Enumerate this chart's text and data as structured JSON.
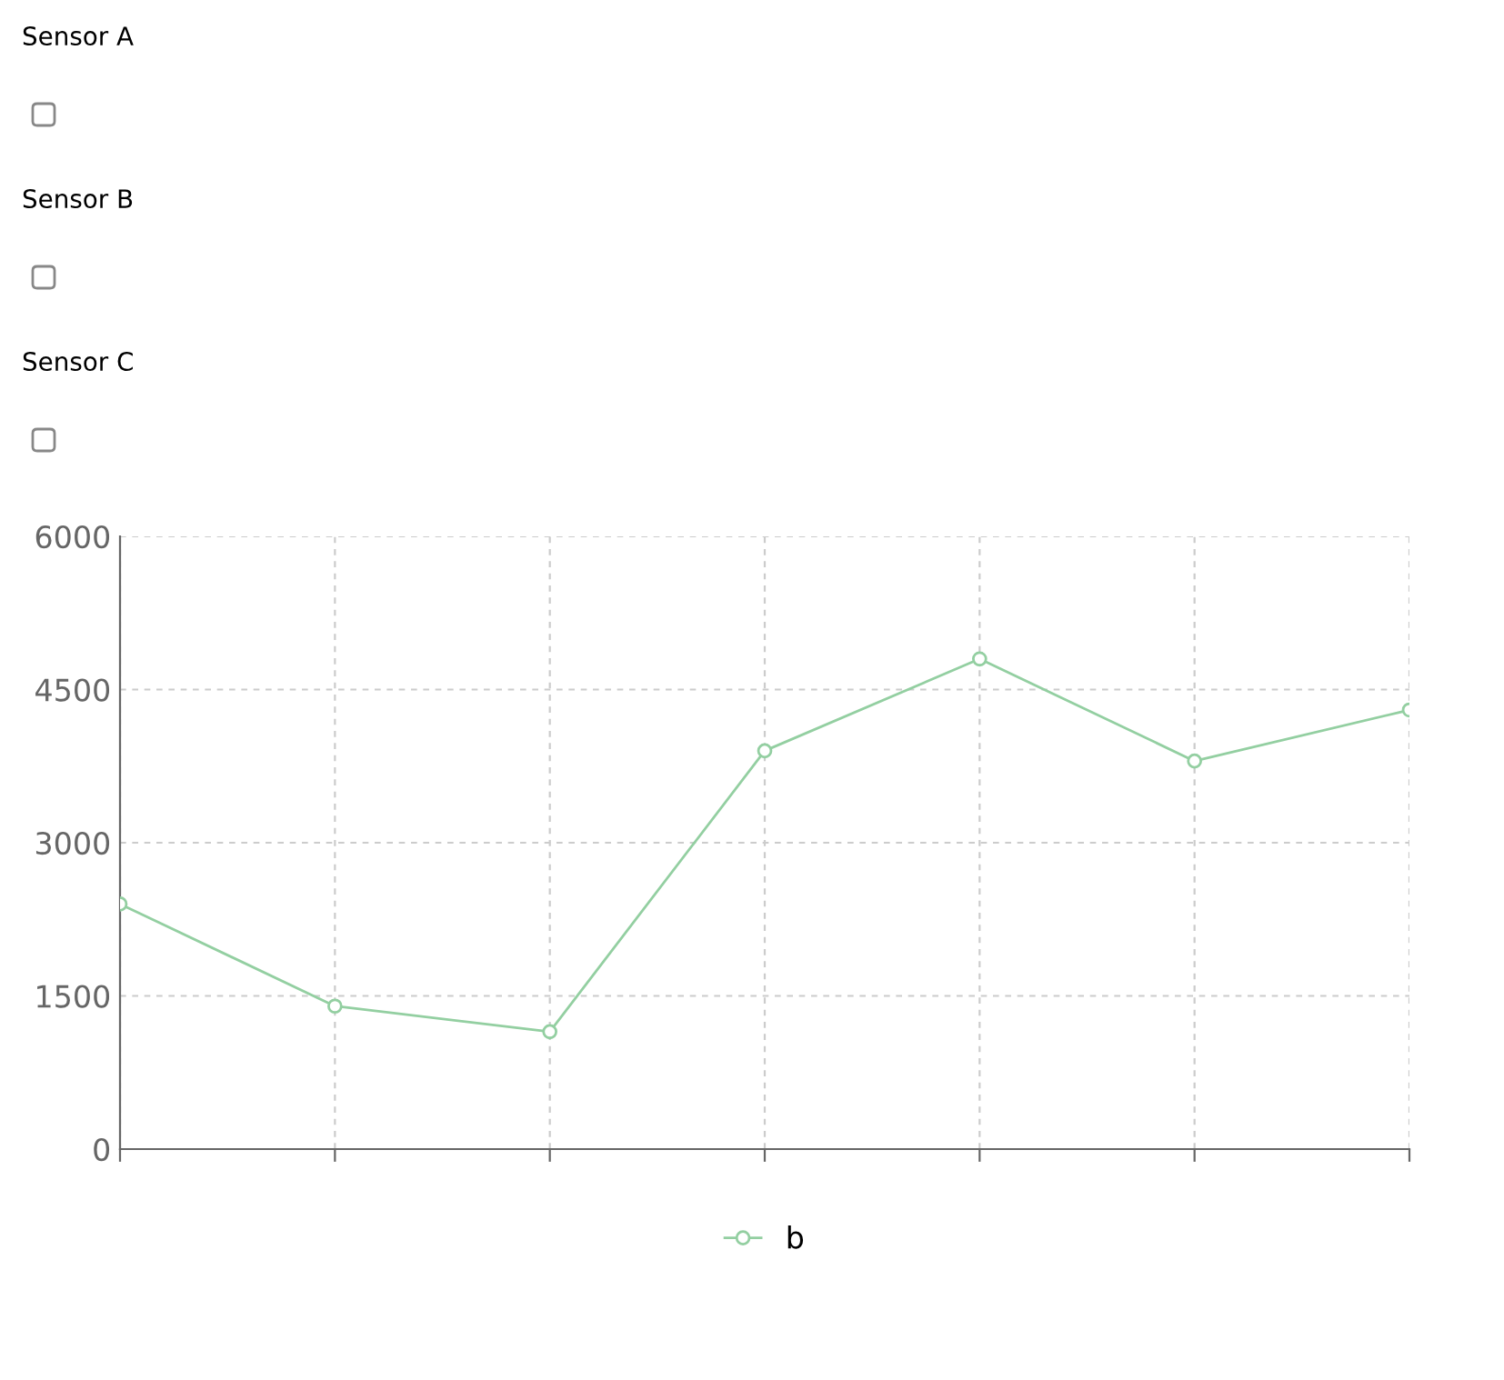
{
  "chart_data": {
    "type": "line",
    "annotations": [
      "Sensor A",
      "Sensor B",
      "Sensor C"
    ],
    "categories": [
      null,
      null,
      null,
      null,
      null,
      null,
      null
    ],
    "series": [
      {
        "name": "b",
        "color": "#93cfa1",
        "values": [
          2400,
          1400,
          1150,
          3900,
          4800,
          3800,
          4300
        ]
      }
    ],
    "ylim": [
      0,
      6000
    ],
    "yticks": [
      0,
      1500,
      3000,
      4500,
      6000
    ],
    "grid": true,
    "legend": "bottom",
    "marker": "circle",
    "line_style": "solid"
  }
}
